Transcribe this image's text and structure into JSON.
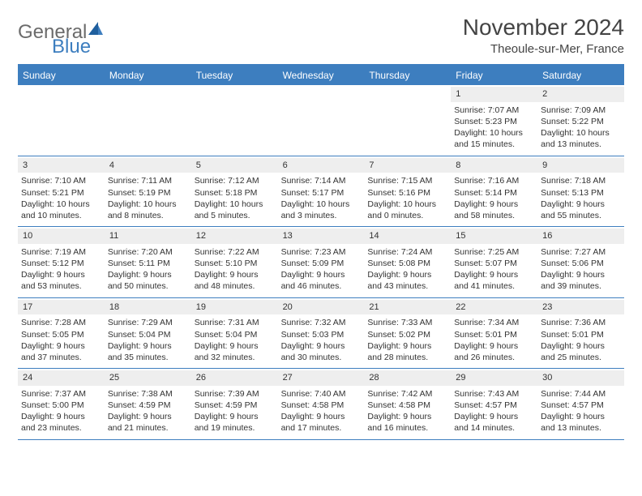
{
  "logo": {
    "general": "General",
    "blue": "Blue"
  },
  "title": "November 2024",
  "location": "Theoule-sur-Mer, France",
  "colors": {
    "brand_blue": "#3d7ebf",
    "header_text": "#ffffff",
    "body_text": "#333333",
    "daynum_bg": "#eeeeee",
    "logo_gray": "#6b6b6b"
  },
  "dayNames": [
    "Sunday",
    "Monday",
    "Tuesday",
    "Wednesday",
    "Thursday",
    "Friday",
    "Saturday"
  ],
  "weeks": [
    [
      {
        "n": "",
        "sr": "",
        "ss": "",
        "dl": ""
      },
      {
        "n": "",
        "sr": "",
        "ss": "",
        "dl": ""
      },
      {
        "n": "",
        "sr": "",
        "ss": "",
        "dl": ""
      },
      {
        "n": "",
        "sr": "",
        "ss": "",
        "dl": ""
      },
      {
        "n": "",
        "sr": "",
        "ss": "",
        "dl": ""
      },
      {
        "n": "1",
        "sr": "Sunrise: 7:07 AM",
        "ss": "Sunset: 5:23 PM",
        "dl": "Daylight: 10 hours and 15 minutes."
      },
      {
        "n": "2",
        "sr": "Sunrise: 7:09 AM",
        "ss": "Sunset: 5:22 PM",
        "dl": "Daylight: 10 hours and 13 minutes."
      }
    ],
    [
      {
        "n": "3",
        "sr": "Sunrise: 7:10 AM",
        "ss": "Sunset: 5:21 PM",
        "dl": "Daylight: 10 hours and 10 minutes."
      },
      {
        "n": "4",
        "sr": "Sunrise: 7:11 AM",
        "ss": "Sunset: 5:19 PM",
        "dl": "Daylight: 10 hours and 8 minutes."
      },
      {
        "n": "5",
        "sr": "Sunrise: 7:12 AM",
        "ss": "Sunset: 5:18 PM",
        "dl": "Daylight: 10 hours and 5 minutes."
      },
      {
        "n": "6",
        "sr": "Sunrise: 7:14 AM",
        "ss": "Sunset: 5:17 PM",
        "dl": "Daylight: 10 hours and 3 minutes."
      },
      {
        "n": "7",
        "sr": "Sunrise: 7:15 AM",
        "ss": "Sunset: 5:16 PM",
        "dl": "Daylight: 10 hours and 0 minutes."
      },
      {
        "n": "8",
        "sr": "Sunrise: 7:16 AM",
        "ss": "Sunset: 5:14 PM",
        "dl": "Daylight: 9 hours and 58 minutes."
      },
      {
        "n": "9",
        "sr": "Sunrise: 7:18 AM",
        "ss": "Sunset: 5:13 PM",
        "dl": "Daylight: 9 hours and 55 minutes."
      }
    ],
    [
      {
        "n": "10",
        "sr": "Sunrise: 7:19 AM",
        "ss": "Sunset: 5:12 PM",
        "dl": "Daylight: 9 hours and 53 minutes."
      },
      {
        "n": "11",
        "sr": "Sunrise: 7:20 AM",
        "ss": "Sunset: 5:11 PM",
        "dl": "Daylight: 9 hours and 50 minutes."
      },
      {
        "n": "12",
        "sr": "Sunrise: 7:22 AM",
        "ss": "Sunset: 5:10 PM",
        "dl": "Daylight: 9 hours and 48 minutes."
      },
      {
        "n": "13",
        "sr": "Sunrise: 7:23 AM",
        "ss": "Sunset: 5:09 PM",
        "dl": "Daylight: 9 hours and 46 minutes."
      },
      {
        "n": "14",
        "sr": "Sunrise: 7:24 AM",
        "ss": "Sunset: 5:08 PM",
        "dl": "Daylight: 9 hours and 43 minutes."
      },
      {
        "n": "15",
        "sr": "Sunrise: 7:25 AM",
        "ss": "Sunset: 5:07 PM",
        "dl": "Daylight: 9 hours and 41 minutes."
      },
      {
        "n": "16",
        "sr": "Sunrise: 7:27 AM",
        "ss": "Sunset: 5:06 PM",
        "dl": "Daylight: 9 hours and 39 minutes."
      }
    ],
    [
      {
        "n": "17",
        "sr": "Sunrise: 7:28 AM",
        "ss": "Sunset: 5:05 PM",
        "dl": "Daylight: 9 hours and 37 minutes."
      },
      {
        "n": "18",
        "sr": "Sunrise: 7:29 AM",
        "ss": "Sunset: 5:04 PM",
        "dl": "Daylight: 9 hours and 35 minutes."
      },
      {
        "n": "19",
        "sr": "Sunrise: 7:31 AM",
        "ss": "Sunset: 5:04 PM",
        "dl": "Daylight: 9 hours and 32 minutes."
      },
      {
        "n": "20",
        "sr": "Sunrise: 7:32 AM",
        "ss": "Sunset: 5:03 PM",
        "dl": "Daylight: 9 hours and 30 minutes."
      },
      {
        "n": "21",
        "sr": "Sunrise: 7:33 AM",
        "ss": "Sunset: 5:02 PM",
        "dl": "Daylight: 9 hours and 28 minutes."
      },
      {
        "n": "22",
        "sr": "Sunrise: 7:34 AM",
        "ss": "Sunset: 5:01 PM",
        "dl": "Daylight: 9 hours and 26 minutes."
      },
      {
        "n": "23",
        "sr": "Sunrise: 7:36 AM",
        "ss": "Sunset: 5:01 PM",
        "dl": "Daylight: 9 hours and 25 minutes."
      }
    ],
    [
      {
        "n": "24",
        "sr": "Sunrise: 7:37 AM",
        "ss": "Sunset: 5:00 PM",
        "dl": "Daylight: 9 hours and 23 minutes."
      },
      {
        "n": "25",
        "sr": "Sunrise: 7:38 AM",
        "ss": "Sunset: 4:59 PM",
        "dl": "Daylight: 9 hours and 21 minutes."
      },
      {
        "n": "26",
        "sr": "Sunrise: 7:39 AM",
        "ss": "Sunset: 4:59 PM",
        "dl": "Daylight: 9 hours and 19 minutes."
      },
      {
        "n": "27",
        "sr": "Sunrise: 7:40 AM",
        "ss": "Sunset: 4:58 PM",
        "dl": "Daylight: 9 hours and 17 minutes."
      },
      {
        "n": "28",
        "sr": "Sunrise: 7:42 AM",
        "ss": "Sunset: 4:58 PM",
        "dl": "Daylight: 9 hours and 16 minutes."
      },
      {
        "n": "29",
        "sr": "Sunrise: 7:43 AM",
        "ss": "Sunset: 4:57 PM",
        "dl": "Daylight: 9 hours and 14 minutes."
      },
      {
        "n": "30",
        "sr": "Sunrise: 7:44 AM",
        "ss": "Sunset: 4:57 PM",
        "dl": "Daylight: 9 hours and 13 minutes."
      }
    ]
  ]
}
